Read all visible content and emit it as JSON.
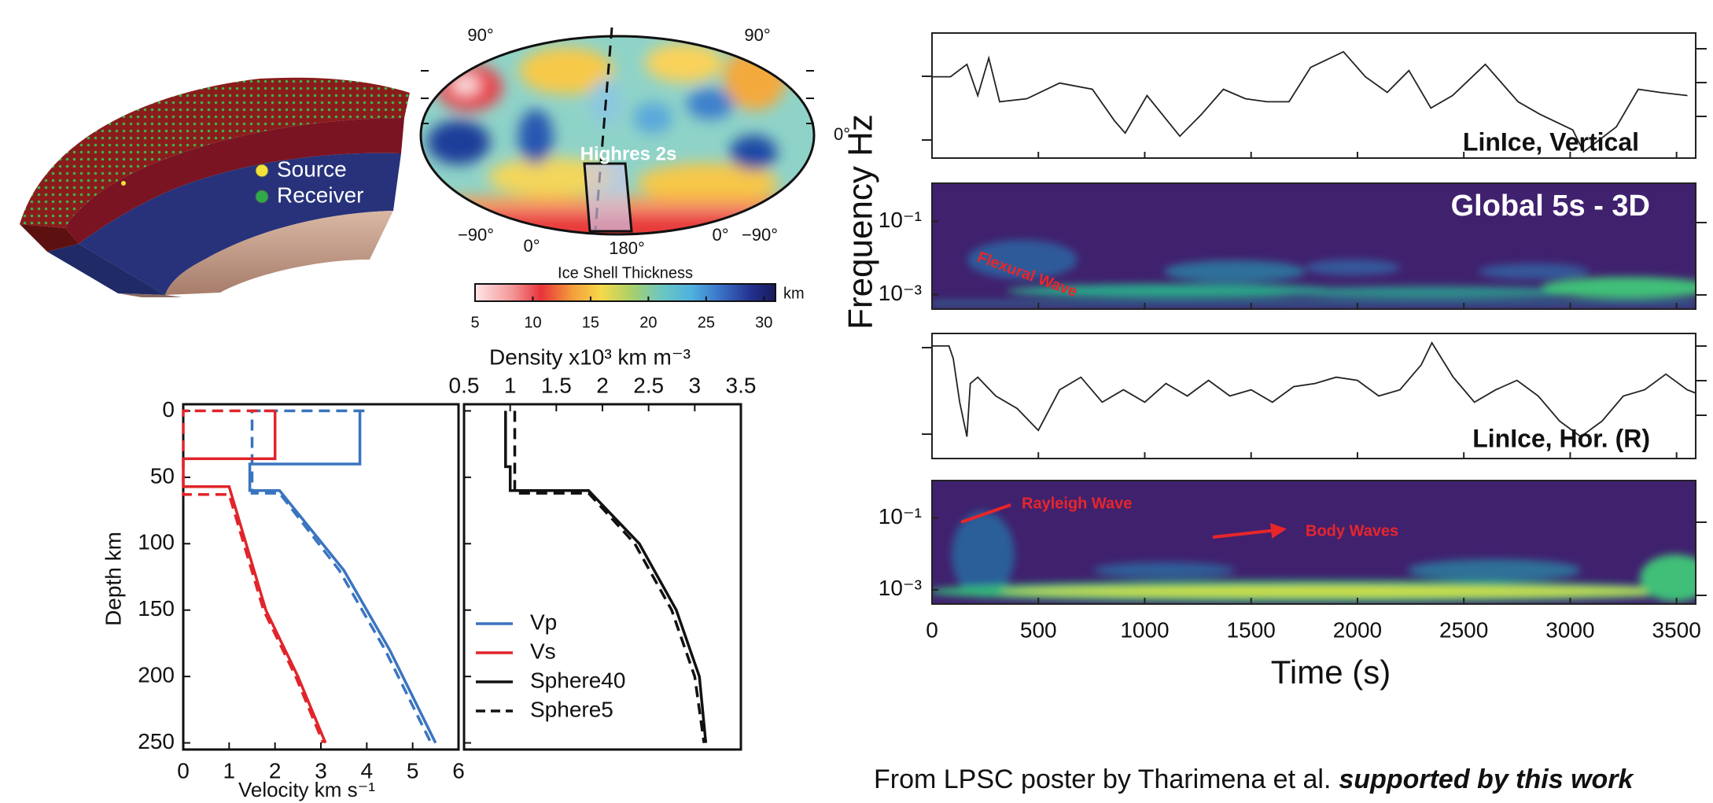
{
  "shell": {
    "labels": [
      "Source",
      "Receiver"
    ]
  },
  "map": {
    "labels": [
      "90°",
      "90°",
      "0°",
      "−90°",
      "0°",
      "180°",
      "0°",
      "−90°"
    ],
    "region_label": "Highres 2s",
    "colorbar": {
      "title": "Ice Shell Thickness",
      "unit": "km",
      "clim": [
        5,
        31
      ],
      "ticks": [
        5,
        10,
        15,
        20,
        25,
        30
      ]
    }
  },
  "chart_data": [
    {
      "type": "profile",
      "y_label": "Depth km",
      "x_label": "Velocity km s⁻¹",
      "x2_label": "Density x10³ km m⁻³",
      "ylim": [
        -5,
        255
      ],
      "y_inverted": true,
      "yticks": [
        0,
        50,
        100,
        150,
        200,
        250
      ],
      "xlim": [
        0,
        6
      ],
      "xticks": [
        0,
        1,
        2,
        3,
        4,
        5,
        6
      ],
      "x2lim": [
        0.5,
        3.5
      ],
      "x2ticks": [
        0.5,
        1,
        1.5,
        2,
        2.5,
        3,
        3.5
      ],
      "series": [
        {
          "color": "#3a74c0",
          "dashed": false,
          "values": [
            3.85,
            3.85,
            1.45,
            1.45,
            2.1,
            3.5,
            4.5,
            5.5
          ],
          "depth": [
            0,
            40,
            40,
            60,
            60,
            120,
            180,
            250
          ]
        },
        {
          "color": "#3a74c0",
          "dashed": true,
          "values": [
            3.95,
            1.5,
            1.5,
            2.1,
            3.4,
            4.4,
            5.4
          ],
          "depth": [
            0,
            0,
            62,
            62,
            120,
            180,
            250
          ]
        },
        {
          "color": "#e0252b",
          "dashed": false,
          "values": [
            2,
            2,
            0,
            0,
            1,
            1.8,
            2.5,
            3.1
          ],
          "depth": [
            0,
            36,
            36,
            57,
            57,
            150,
            200,
            250
          ]
        },
        {
          "color": "#e0252b",
          "dashed": true,
          "values": [
            2,
            0,
            0,
            1,
            1.75,
            2.45,
            3.05
          ],
          "depth": [
            0,
            0,
            63,
            63,
            150,
            200,
            250
          ]
        },
        {
          "color": "#111111",
          "dashed": false,
          "axis": "x2",
          "values": [
            0.95,
            0.95,
            1,
            1,
            1.85,
            2.4,
            2.8,
            3.05,
            3.12
          ],
          "depth": [
            0,
            42,
            42,
            60,
            60,
            100,
            150,
            200,
            250
          ]
        },
        {
          "color": "#111111",
          "dashed": true,
          "axis": "x2",
          "values": [
            1.05,
            1.05,
            1.85,
            2.35,
            2.75,
            3,
            3.1
          ],
          "depth": [
            0,
            62,
            62,
            100,
            150,
            200,
            250
          ]
        }
      ],
      "legend": [
        {
          "label": "Vp",
          "color": "#3a74c0",
          "dashed": false
        },
        {
          "label": "Vs",
          "color": "#e0252b",
          "dashed": false
        },
        {
          "label": "Sphere40",
          "color": "#111111",
          "dashed": false
        },
        {
          "label": "Sphere5",
          "color": "#111111",
          "dashed": true
        }
      ],
      "legend_loc": "lower left"
    },
    {
      "type": "seismogram",
      "x_label": "Time (s)",
      "y_label": "Frequency  Hz",
      "xlim": [
        0,
        3590
      ],
      "xticks": [
        0,
        500,
        1000,
        1500,
        2000,
        2500,
        3000,
        3500
      ],
      "panels": [
        {
          "kind": "trace",
          "label": "LinIce, Vertical",
          "ylim": [
            -1,
            1
          ],
          "color": "#222222",
          "x": [
            0,
            87,
            164,
            215,
            267,
            318,
            446,
            600,
            754,
            857,
            908,
            1011,
            1165,
            1267,
            1370,
            1473,
            1575,
            1678,
            1780,
            1934,
            2037,
            2140,
            2242,
            2345,
            2447,
            2601,
            2755,
            2858,
            3012,
            3063,
            3217,
            3320,
            3422,
            3551
          ],
          "values": [
            0.3,
            0.3,
            0.5,
            0,
            0.6,
            -0.1,
            -0.05,
            0.2,
            0.1,
            -0.4,
            -0.6,
            0,
            -0.65,
            -0.3,
            0.1,
            -0.05,
            -0.1,
            -0.1,
            0.45,
            0.7,
            0.3,
            0.05,
            0.4,
            -0.2,
            0,
            0.5,
            -0.1,
            -0.3,
            -0.55,
            -0.9,
            -0.5,
            0.1,
            0.05,
            0
          ]
        },
        {
          "kind": "spectrogram",
          "label": "Global 5s - 3D",
          "log": true,
          "ylim": [
            0.0004,
            1.1
          ],
          "yticks": [
            {
              "value": 0.1,
              "label": "10⁻¹"
            },
            {
              "value": 0.001,
              "label": "10⁻³"
            }
          ],
          "annotations": [
            {
              "text": "Flexural Wave",
              "color": "#e8262a"
            }
          ]
        },
        {
          "kind": "trace",
          "label": "LinIce, Hor. (R)",
          "ylim": [
            -1,
            1
          ],
          "color": "#222222",
          "x": [
            0,
            80,
            100,
            130,
            164,
            180,
            215,
            300,
            400,
            500,
            600,
            700,
            800,
            900,
            1000,
            1100,
            1200,
            1300,
            1400,
            1500,
            1600,
            1700,
            1800,
            1900,
            2000,
            2100,
            2200,
            2300,
            2350,
            2450,
            2550,
            2650,
            2750,
            2850,
            2950,
            3050,
            3150,
            3250,
            3350,
            3450,
            3550,
            3587
          ],
          "values": [
            0.8,
            0.8,
            0.6,
            -0.1,
            -0.65,
            0.2,
            0.3,
            0,
            -0.2,
            -0.55,
            0.1,
            0.3,
            -0.1,
            0.1,
            -0.1,
            0.2,
            0,
            0.25,
            0,
            0.1,
            -0.1,
            0.15,
            0.2,
            0.3,
            0.25,
            0,
            0.1,
            0.5,
            0.85,
            0.3,
            -0.1,
            0.1,
            0.25,
            0,
            -0.4,
            -0.65,
            -0.4,
            0,
            0.1,
            0.35,
            0.1,
            0.05
          ]
        },
        {
          "kind": "spectrogram",
          "log": true,
          "ylim": [
            0.0004,
            1.1
          ],
          "yticks": [
            {
              "value": 0.1,
              "label": "10⁻¹"
            },
            {
              "value": 0.001,
              "label": "10⁻³"
            }
          ],
          "annotations": [
            {
              "text": "Rayleigh Wave",
              "color": "#e8262a"
            },
            {
              "text": "Body Waves",
              "color": "#e8262a"
            }
          ]
        }
      ]
    }
  ],
  "caption": {
    "text": "From LPSC poster by Tharimena et al.",
    "emphasis": "supported by this work"
  }
}
